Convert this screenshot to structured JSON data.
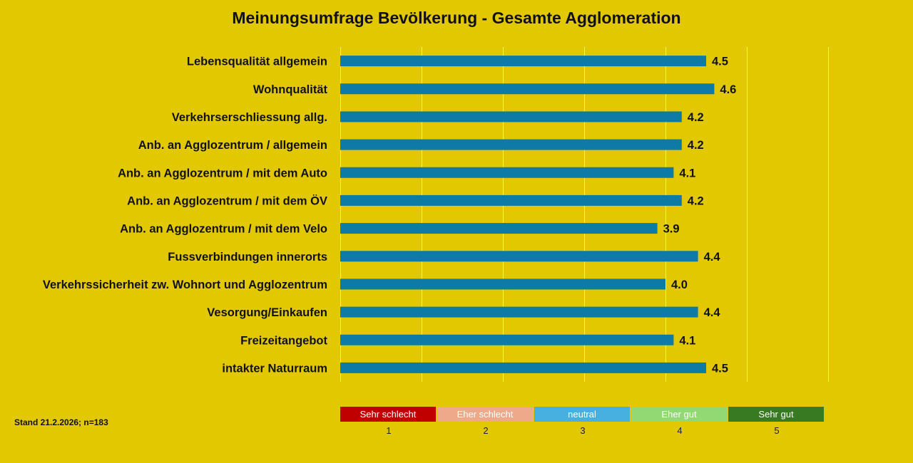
{
  "chart_data": {
    "type": "bar",
    "orientation": "horizontal",
    "title": "Meinungsumfrage Bevölkerung - Gesamte Agglomeration",
    "categories": [
      "Lebensqualität allgemein",
      "Wohnqualität",
      "Verkehrserschliessung allg.",
      "Anb. an Agglozentrum / allgemein",
      "Anb. an Agglozentrum / mit dem Auto",
      "Anb. an Agglozentrum / mit dem ÖV",
      "Anb. an Agglozentrum / mit dem Velo",
      "Fussverbindungen innerorts",
      "Verkehrssicherheit zw. Wohnort und Agglozentrum",
      "Vesorgung/Einkaufen",
      "Freizeitangebot",
      "intakter Naturraum"
    ],
    "values": [
      4.5,
      4.6,
      4.2,
      4.2,
      4.1,
      4.2,
      3.9,
      4.4,
      4.0,
      4.4,
      4.1,
      4.5
    ],
    "value_labels": [
      "4.5",
      "4.6",
      "4.2",
      "4.2",
      "4.1",
      "4.2",
      "3.9",
      "4.4",
      "4.0",
      "4.4",
      "4.1",
      "4.5"
    ],
    "xlim": [
      0,
      6
    ],
    "grid": true,
    "bar_color": "#0e7aa6",
    "grid_color": "#f3e79a"
  },
  "legend": {
    "items": [
      {
        "label": "Sehr schlecht",
        "value": "1",
        "color": "#c00000"
      },
      {
        "label": "Eher schlecht",
        "value": "2",
        "color": "#eea98a"
      },
      {
        "label": "neutral",
        "value": "3",
        "color": "#47b0e0"
      },
      {
        "label": "Eher gut",
        "value": "4",
        "color": "#92d974"
      },
      {
        "label": "Sehr gut",
        "value": "5",
        "color": "#387a22"
      }
    ]
  },
  "footer": {
    "stand": "Stand 21.2.2026; n=183"
  }
}
